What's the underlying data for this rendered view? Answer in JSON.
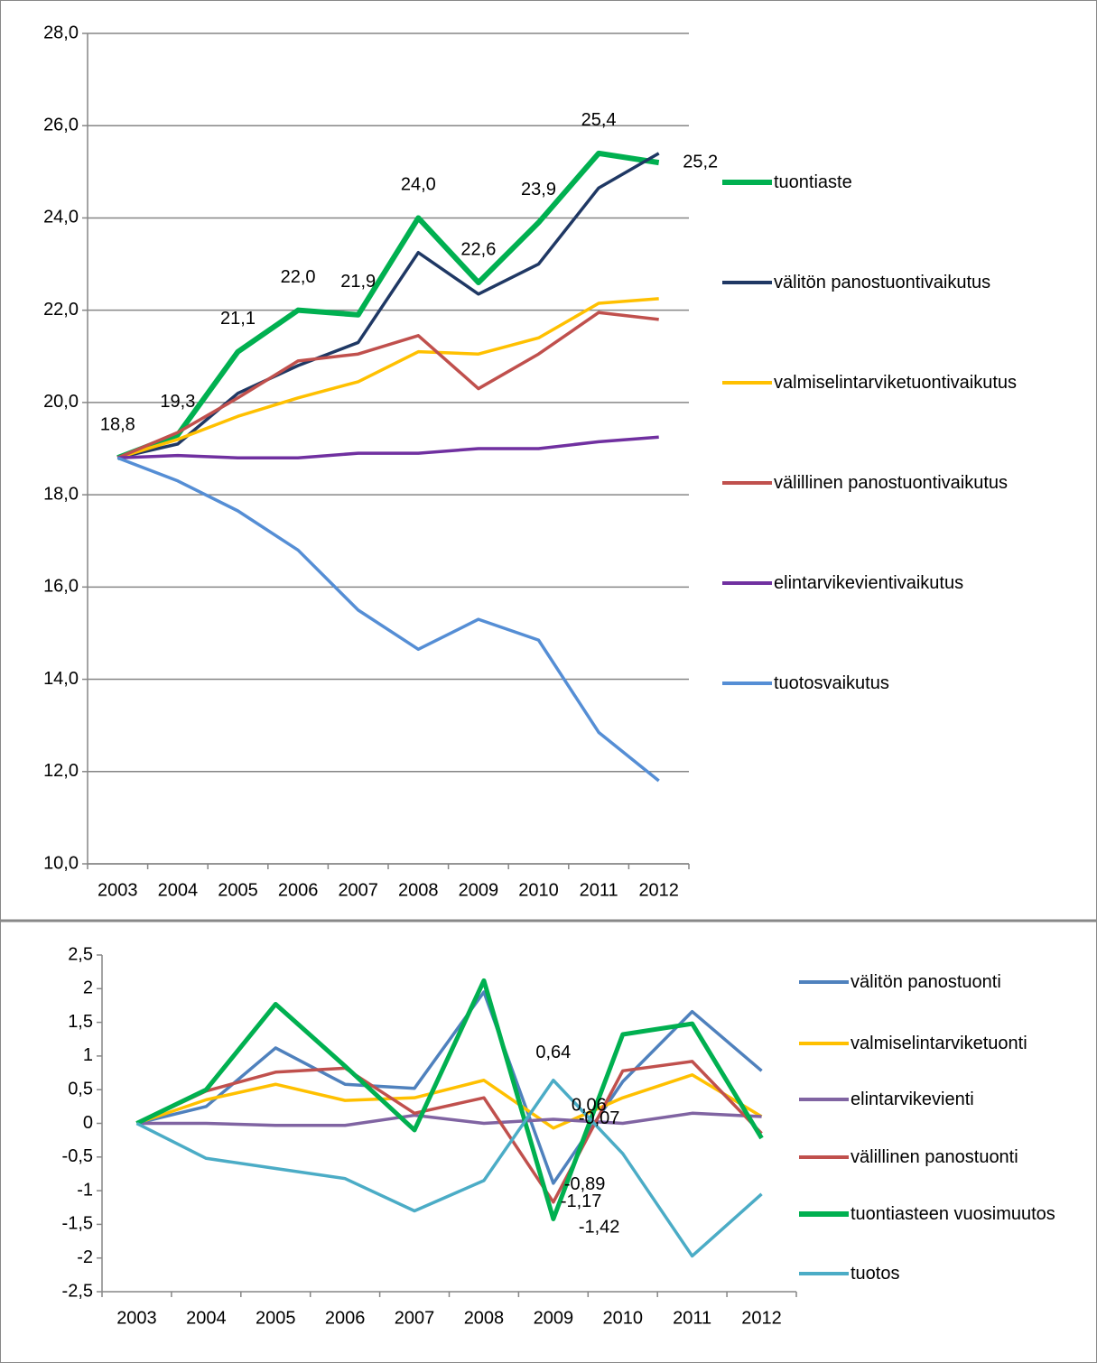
{
  "chart_data": [
    {
      "type": "line",
      "categories": [
        "2003",
        "2004",
        "2005",
        "2006",
        "2007",
        "2008",
        "2009",
        "2010",
        "2011",
        "2012"
      ],
      "ylim": [
        10,
        28
      ],
      "yticks": [
        {
          "value": 10,
          "label": "10,0"
        },
        {
          "value": 12,
          "label": "12,0"
        },
        {
          "value": 14,
          "label": "14,0"
        },
        {
          "value": 16,
          "label": "16,0"
        },
        {
          "value": 18,
          "label": "18,0"
        },
        {
          "value": 20,
          "label": "20,0"
        },
        {
          "value": 22,
          "label": "22,0"
        },
        {
          "value": 24,
          "label": "24,0"
        },
        {
          "value": 26,
          "label": "26,0"
        },
        {
          "value": 28,
          "label": "28,0"
        }
      ],
      "grid": true,
      "legend": "right",
      "series": [
        {
          "name": "tuontiaste",
          "color": "#00b050",
          "values": [
            18.8,
            19.3,
            21.1,
            22.0,
            21.9,
            24.0,
            22.6,
            23.9,
            25.4,
            25.2
          ],
          "value_labels": [
            "18,8",
            "19,3",
            "21,1",
            "22,0",
            "21,9",
            "24,0",
            "22,6",
            "23,9",
            "25,4",
            "25,2"
          ]
        },
        {
          "name": "välitön panostuontivaikutus",
          "color": "#1f3864",
          "values": [
            18.8,
            19.1,
            20.2,
            20.8,
            21.3,
            23.25,
            22.35,
            23.0,
            24.65,
            25.4
          ]
        },
        {
          "name": "valmiselintarviketuontivaikutus",
          "color": "#ffc000",
          "values": [
            18.8,
            19.2,
            19.7,
            20.1,
            20.45,
            21.1,
            21.05,
            21.4,
            22.15,
            22.25
          ]
        },
        {
          "name": "välillinen panostuontivaikutus",
          "color": "#c0504d",
          "values": [
            18.8,
            19.35,
            20.1,
            20.9,
            21.05,
            21.45,
            20.3,
            21.05,
            21.95,
            21.8
          ]
        },
        {
          "name": "elintarvikevientivaikutus",
          "color": "#7030a0",
          "values": [
            18.8,
            18.85,
            18.8,
            18.8,
            18.9,
            18.9,
            19.0,
            19.0,
            19.15,
            19.25
          ]
        },
        {
          "name": "tuotosvaikutus",
          "color": "#558ed5",
          "values": [
            18.8,
            18.3,
            17.65,
            16.8,
            15.5,
            14.65,
            15.3,
            14.85,
            12.85,
            11.8
          ]
        }
      ]
    },
    {
      "type": "line",
      "categories": [
        "2003",
        "2004",
        "2005",
        "2006",
        "2007",
        "2008",
        "2009",
        "2010",
        "2011",
        "2012"
      ],
      "ylim": [
        -2.5,
        2.5
      ],
      "yticks": [
        {
          "value": -2.5,
          "label": "-2,5"
        },
        -2,
        {
          "value": -1.5,
          "label": "-1,5"
        },
        -1,
        {
          "value": -0.5,
          "label": "-0,5"
        },
        0,
        {
          "value": 0.5,
          "label": "0,5"
        },
        1,
        {
          "value": 1.5,
          "label": "1,5"
        },
        2,
        {
          "value": 2.5,
          "label": "2,5"
        }
      ],
      "grid": false,
      "legend": "right",
      "series": [
        {
          "name": "välitön panostuonti",
          "color": "#4f81bd",
          "values": [
            0,
            0.25,
            1.12,
            0.58,
            0.52,
            1.95,
            -0.89,
            0.62,
            1.66,
            0.78
          ],
          "value_labels": [
            null,
            null,
            null,
            null,
            null,
            null,
            "-0,89",
            null,
            null,
            null
          ]
        },
        {
          "name": "valmiselintarviketuonti",
          "color": "#ffc000",
          "values": [
            0,
            0.35,
            0.58,
            0.34,
            0.38,
            0.64,
            -0.07,
            0.38,
            0.72,
            0.1
          ],
          "value_labels": [
            null,
            null,
            null,
            null,
            null,
            null,
            "-0,07",
            null,
            null,
            null
          ]
        },
        {
          "name": "elintarvikevienti",
          "color": "#8064a2",
          "values": [
            0,
            0,
            -0.03,
            -0.03,
            0.12,
            0,
            0.06,
            0,
            0.15,
            0.1
          ],
          "value_labels": [
            null,
            null,
            null,
            null,
            null,
            null,
            "0,06",
            null,
            null,
            null
          ]
        },
        {
          "name": "välillinen panostuonti",
          "color": "#c0504d",
          "values": [
            0,
            0.48,
            0.76,
            0.82,
            0.15,
            0.38,
            -1.17,
            0.78,
            0.92,
            -0.15
          ],
          "value_labels": [
            null,
            null,
            null,
            null,
            null,
            null,
            "-1,17",
            null,
            null,
            null
          ]
        },
        {
          "name": "tuontiasteen vuosimuutos",
          "color": "#00b050",
          "values": [
            0,
            0.5,
            1.77,
            0.85,
            -0.1,
            2.12,
            -1.42,
            1.32,
            1.48,
            -0.22
          ],
          "value_labels": [
            null,
            null,
            null,
            null,
            null,
            null,
            "-1,42",
            null,
            null,
            null
          ]
        },
        {
          "name": "tuotos",
          "color": "#4bacc6",
          "values": [
            0,
            -0.52,
            -0.67,
            -0.82,
            -1.3,
            -0.85,
            0.64,
            -0.45,
            -1.97,
            -1.05
          ],
          "value_labels": [
            null,
            null,
            null,
            null,
            null,
            null,
            "0,64",
            null,
            null,
            null
          ]
        }
      ]
    }
  ]
}
